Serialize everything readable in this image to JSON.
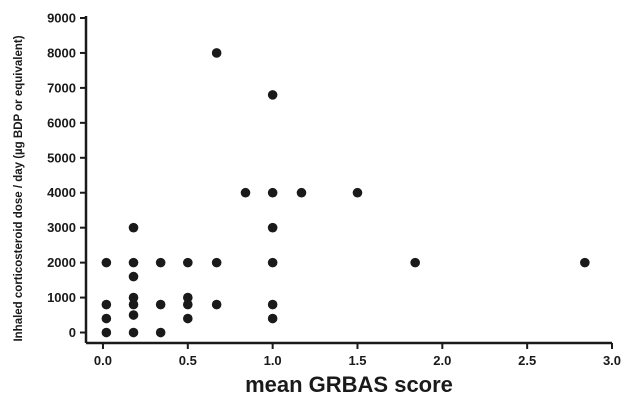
{
  "chart_data": {
    "type": "scatter",
    "title": "",
    "xlabel": "mean GRBAS score",
    "ylabel": "Inhaled corticosteroid dose / day (µg BDP or equivalent)",
    "xlim": [
      -0.1,
      3.0
    ],
    "ylim": [
      -300,
      9000
    ],
    "xticks": [
      "0.0",
      "0.5",
      "1.0",
      "1.5",
      "2.0",
      "2.5",
      "3.0"
    ],
    "yticks": [
      "0",
      "1000",
      "2000",
      "3000",
      "4000",
      "5000",
      "6000",
      "7000",
      "8000",
      "9000"
    ],
    "grid": false,
    "legend": "none",
    "colors": {
      "points": "#1a1a1a",
      "axes": "#1a1a1a"
    },
    "points": [
      [
        0.02,
        2000
      ],
      [
        0.02,
        800
      ],
      [
        0.02,
        400
      ],
      [
        0.02,
        0
      ],
      [
        0.18,
        3000
      ],
      [
        0.18,
        2000
      ],
      [
        0.18,
        1600
      ],
      [
        0.18,
        1000
      ],
      [
        0.18,
        800
      ],
      [
        0.18,
        500
      ],
      [
        0.18,
        0
      ],
      [
        0.34,
        2000
      ],
      [
        0.34,
        800
      ],
      [
        0.34,
        0
      ],
      [
        0.5,
        2000
      ],
      [
        0.5,
        1000
      ],
      [
        0.5,
        800
      ],
      [
        0.5,
        400
      ],
      [
        0.67,
        8000
      ],
      [
        0.67,
        2000
      ],
      [
        0.67,
        800
      ],
      [
        0.84,
        4000
      ],
      [
        1.0,
        6800
      ],
      [
        1.0,
        4000
      ],
      [
        1.0,
        3000
      ],
      [
        1.0,
        2000
      ],
      [
        1.0,
        800
      ],
      [
        1.0,
        400
      ],
      [
        1.17,
        4000
      ],
      [
        1.5,
        4000
      ],
      [
        1.84,
        2000
      ],
      [
        2.84,
        2000
      ]
    ]
  }
}
